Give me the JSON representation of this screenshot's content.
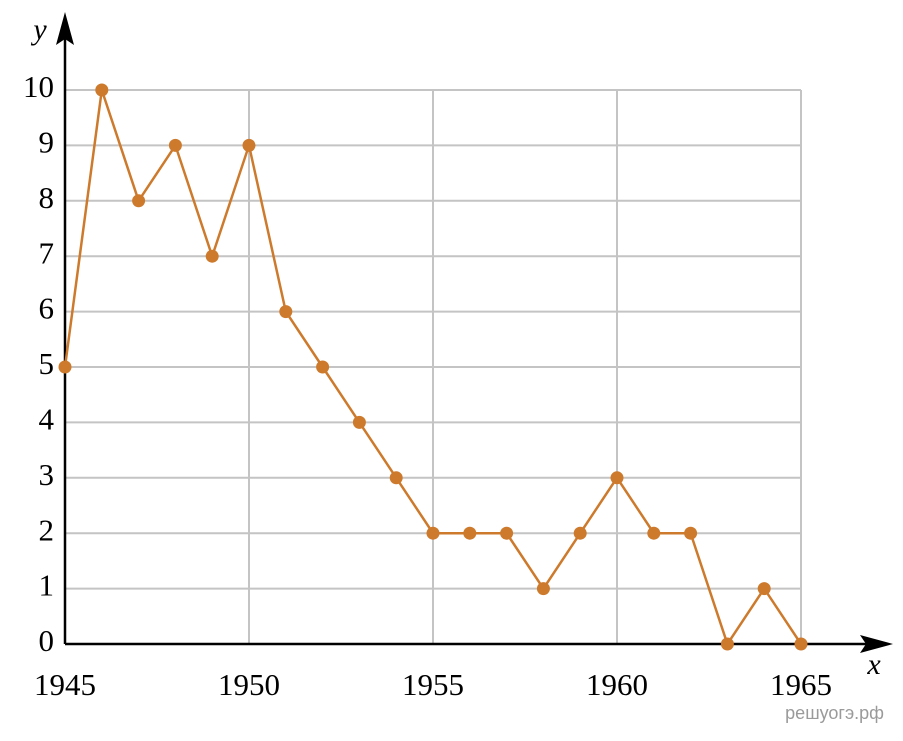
{
  "chart_data": {
    "type": "line",
    "x": [
      1945,
      1946,
      1947,
      1948,
      1949,
      1950,
      1951,
      1952,
      1953,
      1954,
      1955,
      1956,
      1957,
      1958,
      1959,
      1960,
      1961,
      1962,
      1963,
      1964,
      1965
    ],
    "series": [
      {
        "color": "#cd7a2c",
        "values": [
          5,
          10,
          8,
          9,
          7,
          9,
          6,
          5,
          4,
          3,
          2,
          2,
          2,
          1,
          2,
          3,
          2,
          2,
          0,
          1,
          0
        ]
      }
    ],
    "xlim": [
      1945,
      1965
    ],
    "xticks": [
      1945,
      1950,
      1955,
      1960,
      1965
    ],
    "ylim": [
      0,
      10
    ],
    "yticks": [
      0,
      1,
      2,
      3,
      4,
      5,
      6,
      7,
      8,
      9,
      10
    ],
    "grid": true,
    "xlabel": "x",
    "ylabel": "y"
  },
  "watermark": "решуогэ.рф"
}
